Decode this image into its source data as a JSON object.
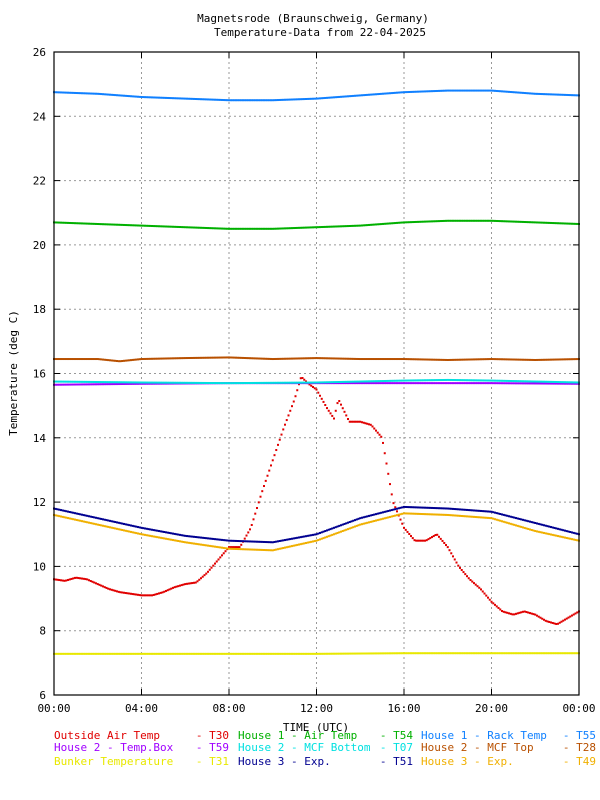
{
  "chart_data": {
    "type": "scatter",
    "title_line1": "Magnetsrode (Braunschweig, Germany)",
    "title_line2": "Temperature-Data from 22-04-2025",
    "xlabel": "TIME (UTC)",
    "ylabel": "Temperature (deg C)",
    "xlim": [
      0,
      24
    ],
    "ylim": [
      6,
      26
    ],
    "grid": true,
    "xticks": [
      {
        "value": 0,
        "label": "00:00"
      },
      {
        "value": 4,
        "label": "04:00"
      },
      {
        "value": 8,
        "label": "08:00"
      },
      {
        "value": 12,
        "label": "12:00"
      },
      {
        "value": 16,
        "label": "16:00"
      },
      {
        "value": 20,
        "label": "20:00"
      },
      {
        "value": 24,
        "label": "00:00"
      }
    ],
    "yticks": [
      {
        "value": 6,
        "label": "6"
      },
      {
        "value": 8,
        "label": "8"
      },
      {
        "value": 10,
        "label": "10"
      },
      {
        "value": 12,
        "label": "12"
      },
      {
        "value": 14,
        "label": "14"
      },
      {
        "value": 16,
        "label": "16"
      },
      {
        "value": 18,
        "label": "18"
      },
      {
        "value": 20,
        "label": "20"
      },
      {
        "value": 22,
        "label": "22"
      },
      {
        "value": 24,
        "label": "24"
      },
      {
        "value": 26,
        "label": "26"
      }
    ],
    "series": [
      {
        "name": "Outside Air Temp",
        "sensor": "T30",
        "color": "#e00000",
        "x": [
          0,
          0.5,
          1,
          1.5,
          2,
          2.5,
          3,
          3.5,
          4,
          4.5,
          5,
          5.5,
          6,
          6.5,
          7,
          7.5,
          8,
          8.5,
          9,
          9.5,
          10,
          10.5,
          11,
          11.3,
          11.6,
          12,
          12.5,
          12.8,
          13,
          13.5,
          14,
          14.5,
          15,
          15.5,
          16,
          16.5,
          17,
          17.5,
          18,
          18.5,
          19,
          19.5,
          20,
          20.5,
          21,
          21.5,
          22,
          22.5,
          23,
          23.5,
          24
        ],
        "y": [
          9.6,
          9.55,
          9.65,
          9.6,
          9.45,
          9.3,
          9.2,
          9.15,
          9.1,
          9.1,
          9.2,
          9.35,
          9.45,
          9.5,
          9.8,
          10.2,
          10.6,
          10.6,
          11.2,
          12.3,
          13.3,
          14.3,
          15.2,
          15.9,
          15.7,
          15.5,
          14.9,
          14.6,
          15.2,
          14.5,
          14.5,
          14.4,
          14.0,
          12.0,
          11.2,
          10.8,
          10.8,
          11.0,
          10.6,
          10.0,
          9.6,
          9.3,
          8.9,
          8.6,
          8.5,
          8.6,
          8.5,
          8.3,
          8.2,
          8.4,
          8.6
        ]
      },
      {
        "name": "House 1 - Air  Temp",
        "sensor": "T54",
        "color": "#00b000",
        "x": [
          0,
          2,
          4,
          6,
          8,
          10,
          12,
          14,
          16,
          18,
          20,
          22,
          24
        ],
        "y": [
          20.7,
          20.65,
          20.6,
          20.55,
          20.5,
          20.5,
          20.55,
          20.6,
          20.7,
          20.75,
          20.75,
          20.7,
          20.65
        ]
      },
      {
        "name": "House 1 - Rack Temp",
        "sensor": "T55",
        "color": "#1080ff",
        "x": [
          0,
          2,
          4,
          6,
          8,
          10,
          12,
          14,
          16,
          18,
          20,
          22,
          24
        ],
        "y": [
          24.75,
          24.7,
          24.6,
          24.55,
          24.5,
          24.5,
          24.55,
          24.65,
          24.75,
          24.8,
          24.8,
          24.7,
          24.65
        ]
      },
      {
        "name": "House 2 - Temp.Box",
        "sensor": "T59",
        "color": "#a000ff",
        "x": [
          0,
          4,
          8,
          12,
          16,
          20,
          24
        ],
        "y": [
          15.65,
          15.68,
          15.7,
          15.7,
          15.7,
          15.7,
          15.68
        ]
      },
      {
        "name": "House 2 - MCF Bottom",
        "sensor": "T07",
        "color": "#00e0e0",
        "x": [
          0,
          4,
          8,
          12,
          16,
          18,
          20,
          24
        ],
        "y": [
          15.75,
          15.72,
          15.7,
          15.72,
          15.78,
          15.8,
          15.78,
          15.72
        ]
      },
      {
        "name": "House 2 - MCF Top",
        "sensor": "T28",
        "color": "#b85000",
        "x": [
          0,
          2,
          3,
          4,
          6,
          8,
          10,
          12,
          14,
          16,
          18,
          20,
          22,
          24
        ],
        "y": [
          16.45,
          16.45,
          16.38,
          16.45,
          16.48,
          16.5,
          16.45,
          16.48,
          16.45,
          16.45,
          16.42,
          16.45,
          16.42,
          16.45
        ]
      },
      {
        "name": "Bunker Temperature",
        "sensor": "T31",
        "color": "#e8e800",
        "x": [
          0,
          4,
          8,
          12,
          16,
          20,
          24
        ],
        "y": [
          7.28,
          7.28,
          7.28,
          7.28,
          7.3,
          7.3,
          7.3
        ]
      },
      {
        "name": "House 3 - Exp.",
        "sensor": "T51",
        "color": "#000090",
        "x": [
          0,
          2,
          4,
          6,
          8,
          10,
          12,
          14,
          16,
          18,
          20,
          22,
          24
        ],
        "y": [
          11.8,
          11.5,
          11.2,
          10.95,
          10.8,
          10.75,
          11.0,
          11.5,
          11.85,
          11.8,
          11.7,
          11.35,
          11.0
        ]
      },
      {
        "name": "House 3 - Exp.",
        "sensor": "T49",
        "color": "#f0b000",
        "x": [
          0,
          2,
          4,
          6,
          8,
          10,
          12,
          14,
          16,
          18,
          20,
          22,
          24
        ],
        "y": [
          11.6,
          11.3,
          11.0,
          10.75,
          10.55,
          10.5,
          10.8,
          11.3,
          11.65,
          11.6,
          11.5,
          11.1,
          10.8
        ]
      }
    ]
  }
}
